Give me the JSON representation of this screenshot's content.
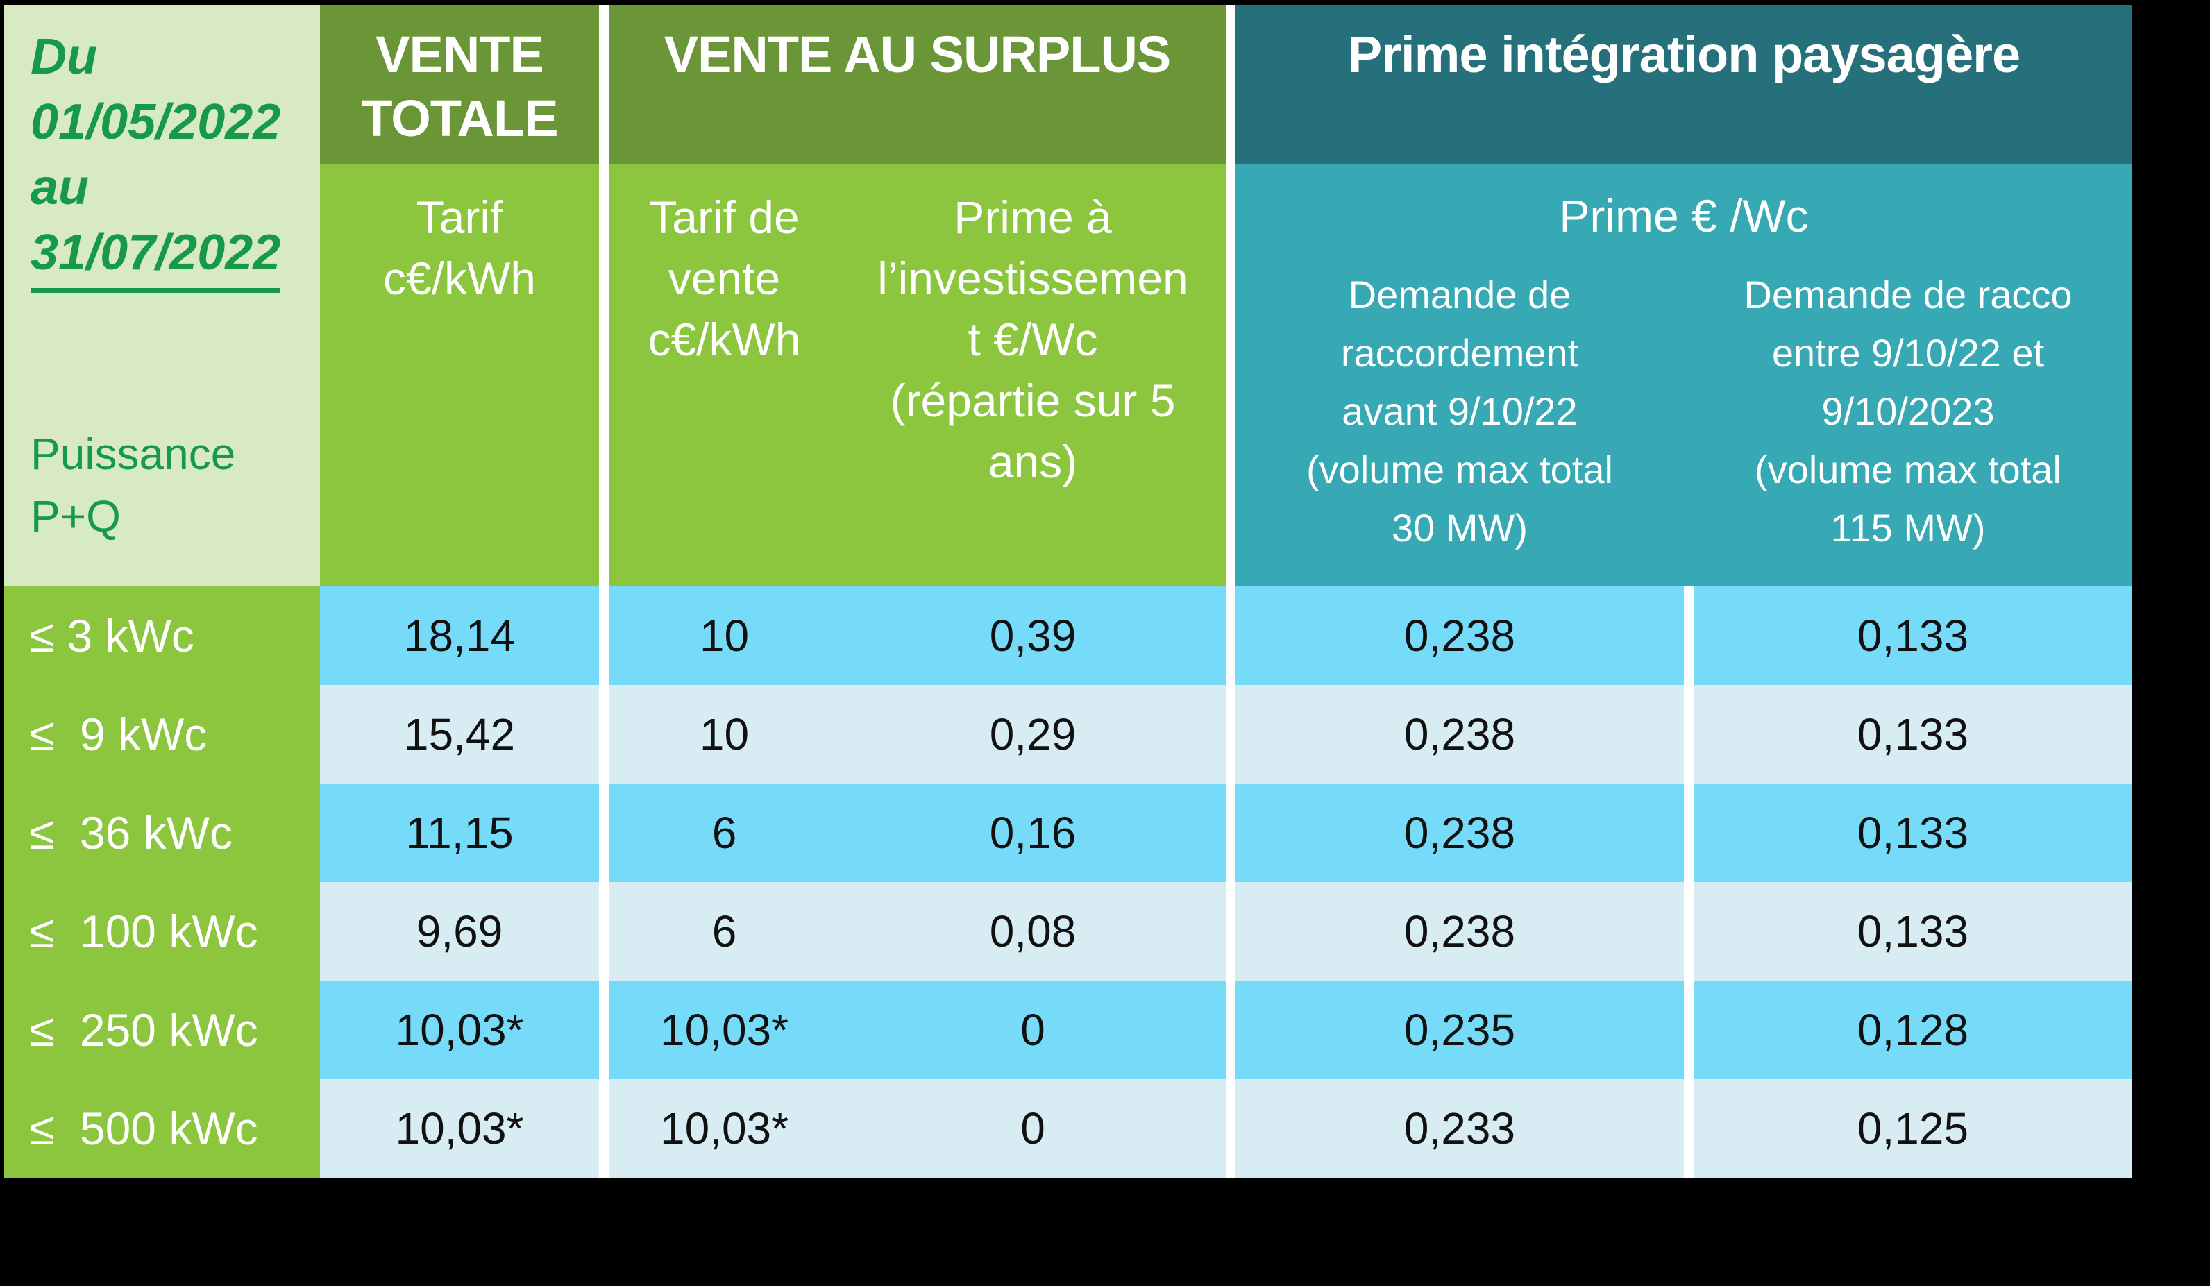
{
  "colors": {
    "background": "#000000",
    "corner_bg": "#d7eac4",
    "green_dark_header": "#6b9637",
    "green_medium": "#8cc63f",
    "teal_dark_header": "#25707a",
    "teal_medium": "#36a9b5",
    "row_bright_blue": "#76dbf8",
    "row_pale_blue": "#d8ecf3",
    "green_text": "#169948",
    "divider_white": "#ffffff"
  },
  "corner": {
    "period_line1": "Du",
    "period_line2": "01/05/2022",
    "period_line3": "au",
    "period_line4": "31/07/2022",
    "power_label": "Puissance\nP+Q"
  },
  "sections": {
    "vente_totale": {
      "title": "VENTE\nTOTALE",
      "subtitle": "Tarif\nc€/kWh"
    },
    "vente_surplus": {
      "title": "VENTE AU SURPLUS",
      "col_tarif": "Tarif de\nvente\nc€/kWh",
      "col_prime": "Prime à\nl’investissemen\nt €/Wc\n(répartie sur 5\nans)"
    },
    "prime_paysagere": {
      "title": "Prime intégration paysagère",
      "subtitle": "Prime € /Wc",
      "col_avant": "Demande de\nraccordement\navant 9/10/22\n(volume max total\n30 MW)",
      "col_entre": "Demande de racco\nentre 9/10/22 et\n9/10/2023\n(volume max total\n115 MW)"
    }
  },
  "rows": [
    {
      "label": "≤ 3 kWc",
      "vente_totale": "18,14",
      "surplus_tarif": "10",
      "surplus_prime": "0,39",
      "prime_avant": "0,238",
      "prime_entre": "0,133"
    },
    {
      "label": "≤  9 kWc",
      "vente_totale": "15,42",
      "surplus_tarif": "10",
      "surplus_prime": "0,29",
      "prime_avant": "0,238",
      "prime_entre": "0,133"
    },
    {
      "label": "≤  36 kWc",
      "vente_totale": "11,15",
      "surplus_tarif": "6",
      "surplus_prime": "0,16",
      "prime_avant": "0,238",
      "prime_entre": "0,133"
    },
    {
      "label": "≤  100 kWc",
      "vente_totale": "9,69",
      "surplus_tarif": "6",
      "surplus_prime": "0,08",
      "prime_avant": "0,238",
      "prime_entre": "0,133"
    },
    {
      "label": "≤  250 kWc",
      "vente_totale": "10,03*",
      "surplus_tarif": "10,03*",
      "surplus_prime": "0",
      "prime_avant": "0,235",
      "prime_entre": "0,128"
    },
    {
      "label": "≤  500 kWc",
      "vente_totale": "10,03*",
      "surplus_tarif": "10,03*",
      "surplus_prime": "0",
      "prime_avant": "0,233",
      "prime_entre": "0,125"
    }
  ],
  "chart_data": {
    "type": "table",
    "title": "Tarifs photovoltaïques du 01/05/2022 au 31/07/2022",
    "columns": [
      "Puissance P+Q",
      "VENTE TOTALE — Tarif c€/kWh",
      "VENTE AU SURPLUS — Tarif de vente c€/kWh",
      "VENTE AU SURPLUS — Prime à l’investissement €/Wc (répartie sur 5 ans)",
      "Prime intégration paysagère € /Wc — Demande de raccordement avant 9/10/22 (volume max total 30 MW)",
      "Prime intégration paysagère € /Wc — Demande de racco entre 9/10/22 et 9/10/2023 (volume max total 115 MW)"
    ],
    "rows": [
      [
        "≤ 3 kWc",
        "18,14",
        "10",
        "0,39",
        "0,238",
        "0,133"
      ],
      [
        "≤ 9 kWc",
        "15,42",
        "10",
        "0,29",
        "0,238",
        "0,133"
      ],
      [
        "≤ 36 kWc",
        "11,15",
        "6",
        "0,16",
        "0,238",
        "0,133"
      ],
      [
        "≤ 100 kWc",
        "9,69",
        "6",
        "0,08",
        "0,238",
        "0,133"
      ],
      [
        "≤ 250 kWc",
        "10,03*",
        "10,03*",
        "0",
        "0,235",
        "0,128"
      ],
      [
        "≤ 500 kWc",
        "10,03*",
        "10,03*",
        "0",
        "0,233",
        "0,125"
      ]
    ]
  }
}
